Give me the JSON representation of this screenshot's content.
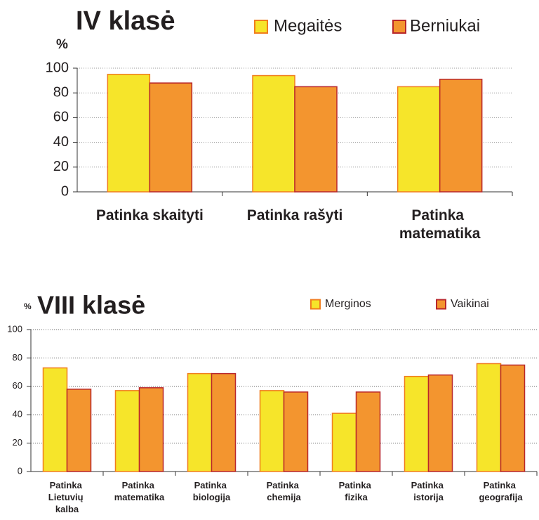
{
  "chart_data": [
    {
      "type": "bar",
      "title": "IV klasė",
      "y_label": "%",
      "categories": [
        "Patinka skaityti",
        "Patinka rašyti",
        "Patinka matematika"
      ],
      "series": [
        {
          "name": "Megaitės",
          "color": "#f6e52a",
          "values": [
            95,
            94,
            85
          ]
        },
        {
          "name": "Berniukai",
          "color": "#f3952f",
          "values": [
            88,
            85,
            91
          ]
        }
      ],
      "ylim": [
        0,
        100
      ],
      "yticks": [
        0,
        20,
        40,
        60,
        80,
        100
      ],
      "grid": true
    },
    {
      "type": "bar",
      "title": "VIII klasė",
      "y_label": "%",
      "categories": [
        "Patinka Lietuvių kalba",
        "Patinka matematika",
        "Patinka biologija",
        "Patinka chemija",
        "Patinka fizika",
        "Patinka istorija",
        "Patinka geografija"
      ],
      "series": [
        {
          "name": "Merginos",
          "color": "#f6e52a",
          "values": [
            73,
            57,
            69,
            57,
            41,
            67,
            76
          ]
        },
        {
          "name": "Vaikinai",
          "color": "#f3952f",
          "values": [
            58,
            59,
            69,
            56,
            56,
            68,
            75
          ]
        }
      ],
      "ylim": [
        0,
        100
      ],
      "yticks": [
        0,
        20,
        40,
        60,
        80,
        100
      ],
      "grid": true
    }
  ]
}
